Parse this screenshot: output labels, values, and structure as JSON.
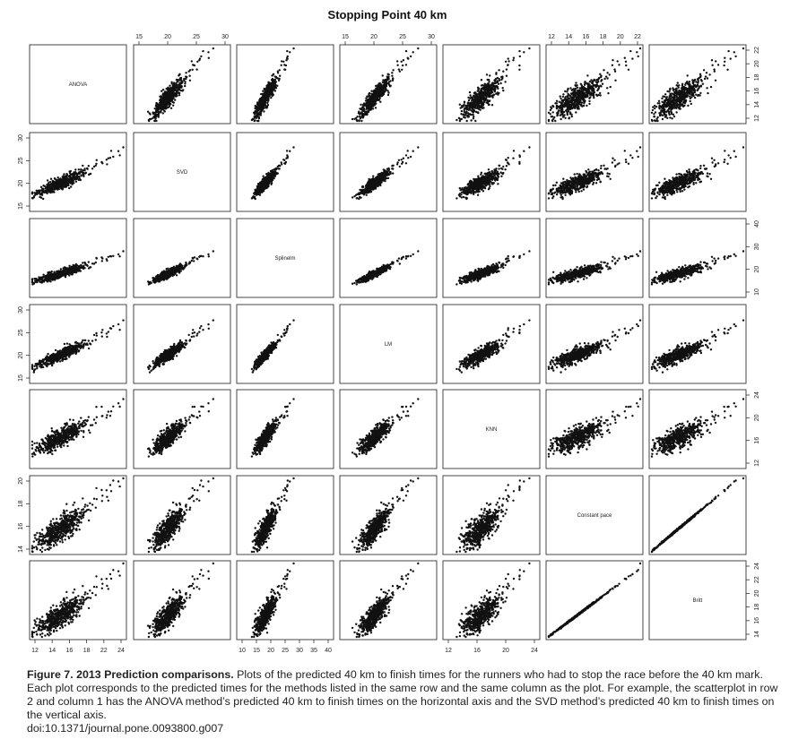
{
  "chart_data": {
    "type": "scatter",
    "title": "Stopping Point 40 km",
    "variables": [
      "ANOVA",
      "SVD",
      "Splinelm",
      "LM",
      "KNN",
      "Constant pace",
      "Britt"
    ],
    "tick_labels": {
      "top": [
        {
          "col": 1,
          "labels": [
            "15",
            "20",
            "25",
            "30"
          ]
        },
        {
          "col": 3,
          "labels": [
            "15",
            "20",
            "25",
            "30"
          ]
        },
        {
          "col": 5,
          "labels": [
            "12",
            "14",
            "16",
            "18",
            "20",
            "22"
          ]
        }
      ],
      "bottom": [
        {
          "col": 0,
          "labels": [
            "12",
            "14",
            "16",
            "18",
            "22",
            "24"
          ]
        },
        {
          "col": 2,
          "labels": [
            "10",
            "15",
            "20",
            "25",
            "30",
            "35",
            "40"
          ]
        },
        {
          "col": 4,
          "labels": [
            "12",
            "16",
            "20",
            "24"
          ]
        }
      ],
      "left": [
        {
          "row": 1,
          "labels": [
            "15",
            "20",
            "25",
            "30"
          ]
        },
        {
          "row": 3,
          "labels": [
            "15",
            "20",
            "25",
            "30"
          ]
        },
        {
          "row": 5,
          "labels": [
            "14",
            "16",
            "18",
            "20"
          ]
        }
      ],
      "right": [
        {
          "row": 0,
          "labels": [
            "12",
            "14",
            "16",
            "18",
            "20",
            "22"
          ]
        },
        {
          "row": 2,
          "labels": [
            "10",
            "20",
            "30",
            "40"
          ]
        },
        {
          "row": 4,
          "labels": [
            "12",
            "16",
            "20",
            "24"
          ]
        },
        {
          "row": 6,
          "labels": [
            "14",
            "16",
            "18",
            "20",
            "22",
            "24"
          ]
        }
      ]
    },
    "ranges": {
      "ANOVA": [
        12,
        23
      ],
      "SVD": [
        10,
        31
      ],
      "Splinelm": [
        8,
        41
      ],
      "LM": [
        10,
        31
      ],
      "KNN": [
        10,
        26
      ],
      "Constant pace": [
        12,
        23
      ],
      "Britt": [
        12,
        25
      ]
    }
  },
  "caption": {
    "label": "Figure 7. 2013 Prediction comparisons.",
    "text": " Plots of the predicted 40 km to finish times for the runners who had to stop the race before the 40 km mark. Each plot corresponds to the predicted times for the methods listed in the same row and the same column as the plot. For example, the scatterplot in row 2 and column 1 has the ANOVA method’s predicted 40 km to finish times on the horizontal axis and the SVD method’s predicted 40 km to finish times on the vertical axis.",
    "doi": "doi:10.1371/journal.pone.0093800.g007"
  }
}
